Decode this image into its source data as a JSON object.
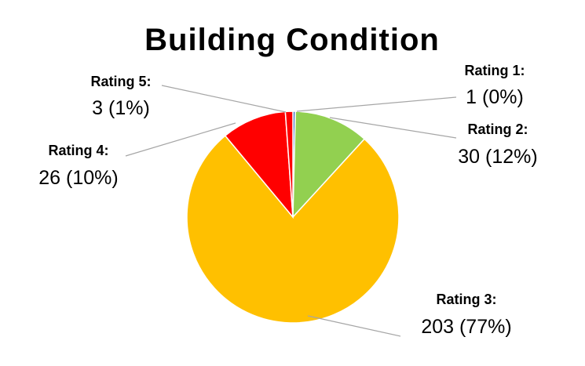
{
  "chart_data": {
    "type": "pie",
    "title": "Building Condition",
    "start_angle_deg": 0,
    "direction": "clockwise",
    "slices": [
      {
        "label": "Rating 1:",
        "value": 1,
        "value_text": "1 (0%)",
        "color": "#4472c4"
      },
      {
        "label": "Rating 2:",
        "value": 30,
        "value_text": "30 (12%)",
        "color": "#92d050"
      },
      {
        "label": "Rating 3:",
        "value": 203,
        "value_text": "203 (77%)",
        "color": "#ffc000"
      },
      {
        "label": "Rating 4:",
        "value": 26,
        "value_text": "26 (10%)",
        "color": "#ff0000"
      },
      {
        "label": "Rating 5:",
        "value": 3,
        "value_text": "3 (1%)",
        "color": "#ff0000"
      }
    ],
    "legend": "none",
    "data_labels": "outside with leader lines"
  }
}
